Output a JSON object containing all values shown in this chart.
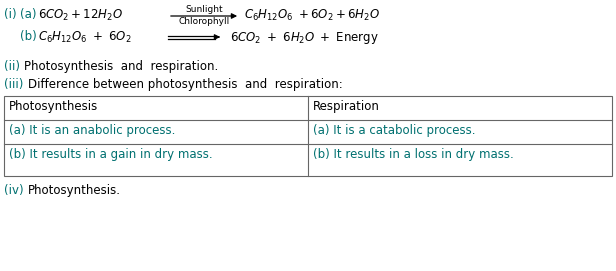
{
  "bg_color": "#ffffff",
  "text_color": "#000000",
  "teal_color": "#007070",
  "table_border_color": "#666666",
  "font_size": 8.5,
  "small_font": 6.5,
  "line2_text": "Photosynthesis  and  respiration.",
  "line3_text": "Difference between photosynthesis  and  respiration:",
  "table_headers": [
    "Photosynthesis",
    "Respiration"
  ],
  "table_row1": [
    "(a) It is an anabolic process.",
    "(a) It is a catabolic process."
  ],
  "table_row2": [
    "(b) It results in a gain in dry mass.",
    "(b) It results in a loss in dry mass."
  ],
  "line4_text": "Photosynthesis."
}
